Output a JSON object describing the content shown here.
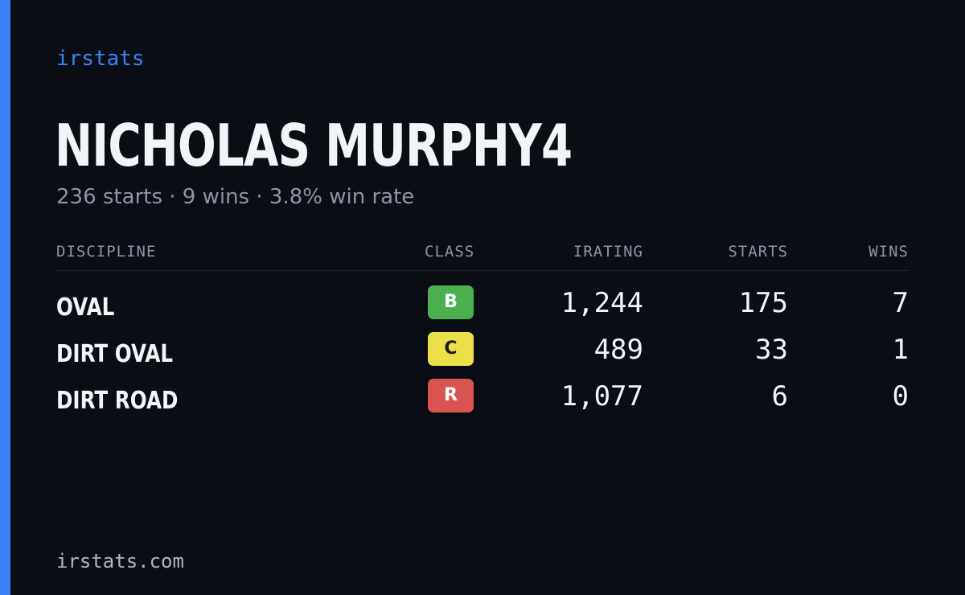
{
  "brand": "irstats",
  "profile": {
    "name": "NICHOLAS MURPHY4",
    "summary": "236 starts · 9 wins · 3.8% win rate"
  },
  "table": {
    "headers": {
      "discipline": "DISCIPLINE",
      "class": "CLASS",
      "irating": "IRATING",
      "starts": "STARTS",
      "wins": "WINS"
    },
    "rows": [
      {
        "discipline": "OVAL",
        "class": "B",
        "class_color": "#4caf50",
        "class_text_color": "#ffffff",
        "irating": "1,244",
        "starts": "175",
        "wins": "7"
      },
      {
        "discipline": "DIRT OVAL",
        "class": "C",
        "class_color": "#ebe04a",
        "class_text_color": "#1a1a1a",
        "irating": "489",
        "starts": "33",
        "wins": "1"
      },
      {
        "discipline": "DIRT ROAD",
        "class": "R",
        "class_color": "#d9534f",
        "class_text_color": "#ffffff",
        "irating": "1,077",
        "starts": "6",
        "wins": "0"
      }
    ]
  },
  "footer": "irstats.com",
  "colors": {
    "accent": "#3b82f6",
    "background": "#0a0d14"
  }
}
